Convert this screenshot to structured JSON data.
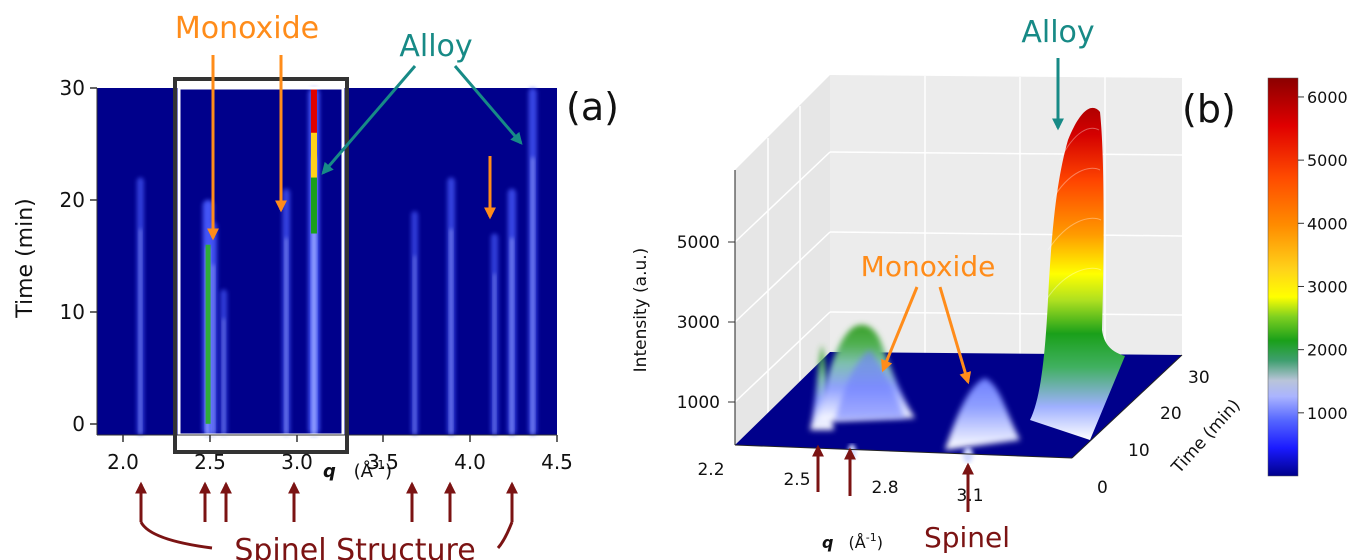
{
  "colors": {
    "background": "#00008b",
    "orange": "#ff8c1a",
    "teal": "#178a86",
    "darkred": "#7b1313",
    "frame": "#333333"
  },
  "panel_a": {
    "tag": "(a)",
    "xlabel_q": "q",
    "xlabel_unit": "(Å",
    "xlabel_exp": "-1",
    "xlabel_close": ")",
    "ylabel": "Time (min)",
    "annotation_monoxide": "Monoxide",
    "annotation_alloy": "Alloy",
    "annotation_spinel": "Spinel Structure"
  },
  "panel_b": {
    "tag": "(b)",
    "zlabel": "Intensity (a.u.)",
    "ylabel": "Time (min)",
    "xlabel_q": "q",
    "xlabel_unit": "(Å",
    "xlabel_exp": "-1",
    "xlabel_close": ")",
    "annotation_monoxide": "Monoxide",
    "annotation_alloy": "Alloy",
    "annotation_spinel": "Spinel",
    "colorbar_ticks": [
      "1000",
      "2000",
      "3000",
      "4000",
      "5000",
      "6000"
    ]
  },
  "chart_data": [
    {
      "type": "heatmap",
      "title": "(a)",
      "xlabel": "q (Å-1)",
      "ylabel": "Time (min)",
      "xlim": [
        1.85,
        4.5
      ],
      "ylim": [
        -1,
        30
      ],
      "x_ticks": [
        "2.0",
        "2.5",
        "3.0",
        "3.5",
        "4.0",
        "4.5"
      ],
      "y_ticks": [
        "0",
        "10",
        "20",
        "30"
      ],
      "peaks": [
        {
          "q": 2.1,
          "phase": "Spinel",
          "tmax": 22,
          "intensity": 0.35
        },
        {
          "q": 2.49,
          "phase": "Spinel",
          "tmax": 20,
          "intensity": 0.95
        },
        {
          "q": 2.52,
          "phase": "Monoxide",
          "tmax": 18,
          "intensity": 0.45
        },
        {
          "q": 2.58,
          "phase": "Spinel",
          "tmax": 12,
          "intensity": 0.3
        },
        {
          "q": 2.94,
          "phase": "Monoxide",
          "tmax": 21,
          "intensity": 0.45
        },
        {
          "q": 3.1,
          "phase": "Alloy",
          "tmax": 30,
          "intensity": 1.0
        },
        {
          "q": 3.68,
          "phase": "Spinel",
          "tmax": 19,
          "intensity": 0.3
        },
        {
          "q": 3.89,
          "phase": "Spinel",
          "tmax": 22,
          "intensity": 0.45
        },
        {
          "q": 4.14,
          "phase": "Monoxide",
          "tmax": 17,
          "intensity": 0.35
        },
        {
          "q": 4.24,
          "phase": "Spinel",
          "tmax": 21,
          "intensity": 0.55
        },
        {
          "q": 4.36,
          "phase": "Alloy",
          "tmax": 30,
          "intensity": 0.55
        }
      ],
      "highlight_box_q": [
        2.3,
        3.3
      ]
    },
    {
      "type": "area",
      "title": "(b)",
      "xlabel": "q (Å-1)",
      "ylabel": "Time (min)",
      "zlabel": "Intensity (a.u.)",
      "x_ticks": [
        "2.2",
        "2.5",
        "2.8",
        "3.1"
      ],
      "y_ticks": [
        "0",
        "10",
        "20",
        "30"
      ],
      "z_ticks": [
        "1000",
        "3000",
        "5000"
      ],
      "colorbar_range": [
        0,
        6300
      ],
      "colorbar_ticks": [
        1000,
        2000,
        3000,
        4000,
        5000,
        6000
      ],
      "peaks": [
        {
          "q": 2.48,
          "phase": "Spinel",
          "max_intensity": 2000
        },
        {
          "q": 2.55,
          "phase": "Monoxide",
          "max_intensity": 2600
        },
        {
          "q": 2.96,
          "phase": "Monoxide",
          "max_intensity": 1000
        },
        {
          "q": 3.1,
          "phase": "Alloy",
          "max_intensity": 6200
        }
      ]
    }
  ]
}
